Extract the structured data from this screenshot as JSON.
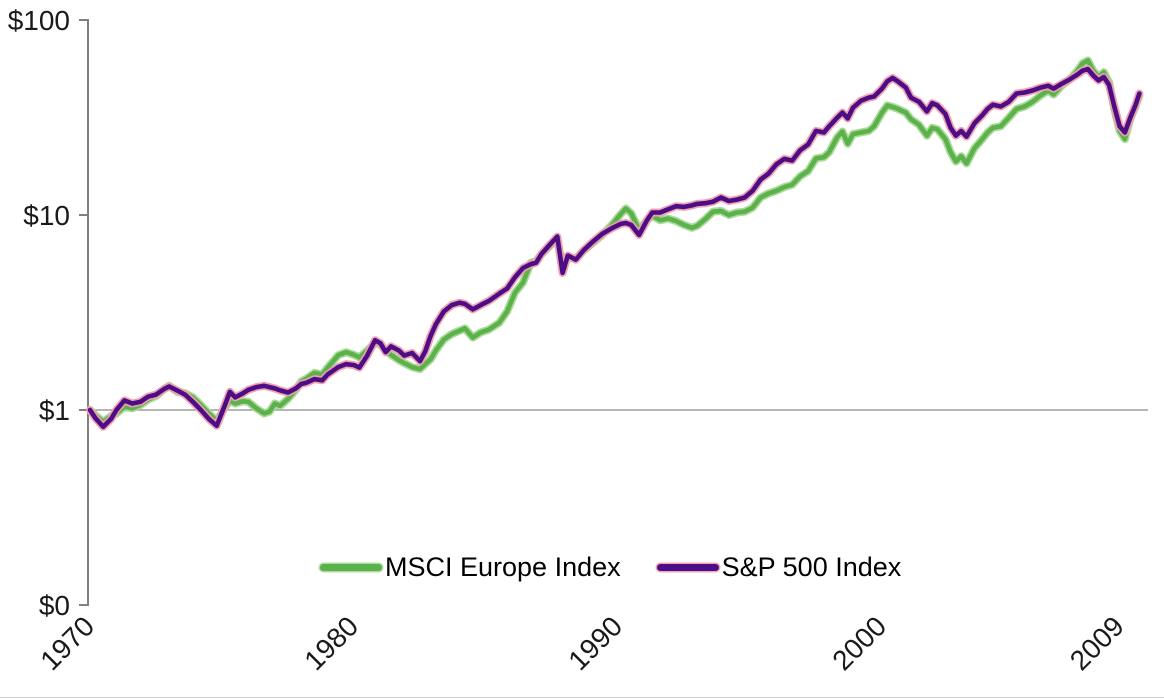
{
  "colors": {
    "msci_europe_line": "#5BB24B",
    "msci_europe_halo": "#A6D794",
    "sp500_line": "#4B0E86",
    "sp500_halo": "#F29DAD",
    "axis": "#808080",
    "gridline": "#9E9E9E",
    "bottom_border": "#C9C9C9",
    "text": "#1A1A1A"
  },
  "legend": {
    "items": [
      {
        "label": "MSCI Europe Index",
        "swatch": "green-line-swatch"
      },
      {
        "label": "S&P 500 Index",
        "swatch": "purple-line-swatch"
      }
    ]
  },
  "chart_data": {
    "type": "line",
    "title": "",
    "xlabel": "",
    "ylabel": "",
    "y_axis": {
      "scale": "log",
      "range": [
        0.1,
        100
      ],
      "ticks": [
        {
          "label": "$100",
          "v": 100
        },
        {
          "label": "$10",
          "v": 10
        },
        {
          "label": "$1",
          "v": 1
        },
        {
          "label": "$0",
          "v": 0.1
        }
      ],
      "reference_gridline_value": 1
    },
    "x_axis": {
      "range": [
        1970,
        2009.8
      ],
      "ticks": [
        {
          "label": "1970",
          "year": 1970
        },
        {
          "label": "1980",
          "year": 1980
        },
        {
          "label": "1990",
          "year": 1990
        },
        {
          "label": "2000",
          "year": 2000
        },
        {
          "label": "2009",
          "year": 2009
        }
      ]
    },
    "legend_position": "bottom-center",
    "grid": "off",
    "x": [
      1970.0,
      1970.2,
      1970.5,
      1970.8,
      1971.0,
      1971.3,
      1971.6,
      1971.9,
      1972.2,
      1972.5,
      1972.8,
      1973.0,
      1973.3,
      1973.6,
      1973.9,
      1974.2,
      1974.5,
      1974.8,
      1975.1,
      1975.3,
      1975.5,
      1975.8,
      1976.0,
      1976.3,
      1976.6,
      1976.8,
      1977.0,
      1977.2,
      1977.5,
      1977.8,
      1978.0,
      1978.2,
      1978.5,
      1978.8,
      1979.0,
      1979.4,
      1979.7,
      1980.0,
      1980.2,
      1980.5,
      1980.8,
      1981.0,
      1981.2,
      1981.4,
      1981.7,
      1981.9,
      1982.2,
      1982.5,
      1982.7,
      1982.9,
      1983.1,
      1983.4,
      1983.7,
      1984.0,
      1984.2,
      1984.5,
      1984.8,
      1985.1,
      1985.5,
      1985.8,
      1986.1,
      1986.4,
      1986.7,
      1986.9,
      1987.1,
      1987.4,
      1987.7,
      1987.9,
      1988.1,
      1988.4,
      1988.7,
      1989.0,
      1989.4,
      1989.8,
      1990.1,
      1990.3,
      1990.5,
      1990.8,
      1991.1,
      1991.3,
      1991.6,
      1991.9,
      1992.2,
      1992.5,
      1992.8,
      1993.0,
      1993.3,
      1993.6,
      1993.9,
      1994.2,
      1994.5,
      1994.8,
      1995.1,
      1995.4,
      1995.7,
      1996.0,
      1996.3,
      1996.6,
      1996.9,
      1997.2,
      1997.5,
      1997.8,
      1998.0,
      1998.3,
      1998.5,
      1998.7,
      1998.9,
      1999.2,
      1999.5,
      1999.7,
      2000.0,
      2000.2,
      2000.4,
      2000.6,
      2000.9,
      2001.1,
      2001.4,
      2001.7,
      2001.9,
      2002.1,
      2002.4,
      2002.6,
      2002.8,
      2003.0,
      2003.2,
      2003.5,
      2003.8,
      2004.0,
      2004.2,
      2004.5,
      2004.8,
      2005.1,
      2005.4,
      2005.7,
      2006.0,
      2006.3,
      2006.5,
      2006.8,
      2007.1,
      2007.4,
      2007.6,
      2007.8,
      2008.0,
      2008.2,
      2008.4,
      2008.6,
      2008.8,
      2009.0,
      2009.2,
      2009.4,
      2009.6,
      2009.75
    ],
    "series": [
      {
        "name": "MSCI Europe Index",
        "color": "#5BB24B",
        "halo": "#A6D794",
        "values": [
          1.0,
          0.94,
          0.87,
          0.93,
          0.96,
          1.04,
          1.02,
          1.06,
          1.13,
          1.18,
          1.28,
          1.33,
          1.24,
          1.22,
          1.16,
          1.06,
          0.96,
          0.88,
          1.02,
          1.12,
          1.08,
          1.11,
          1.1,
          1.02,
          0.96,
          0.98,
          1.08,
          1.05,
          1.14,
          1.27,
          1.4,
          1.45,
          1.55,
          1.52,
          1.65,
          1.91,
          1.98,
          1.92,
          1.86,
          2.02,
          2.2,
          2.18,
          2.02,
          1.92,
          1.8,
          1.74,
          1.66,
          1.62,
          1.72,
          1.82,
          2.02,
          2.3,
          2.45,
          2.55,
          2.62,
          2.35,
          2.5,
          2.58,
          2.8,
          3.2,
          4.0,
          4.5,
          5.7,
          5.8,
          6.3,
          6.9,
          7.6,
          5.3,
          6.1,
          5.95,
          6.6,
          7.1,
          7.9,
          9.0,
          10.1,
          10.8,
          10.2,
          8.4,
          9.4,
          9.9,
          9.4,
          9.6,
          9.3,
          8.9,
          8.6,
          8.8,
          9.5,
          10.4,
          10.5,
          10.0,
          10.3,
          10.4,
          10.9,
          12.3,
          12.9,
          13.3,
          13.9,
          14.3,
          15.8,
          16.8,
          19.5,
          19.8,
          21.0,
          25.0,
          26.8,
          23.2,
          26.0,
          26.5,
          27.0,
          28.5,
          33.5,
          36.5,
          35.8,
          35.0,
          33.5,
          31.0,
          29.0,
          25.5,
          28.0,
          27.5,
          24.5,
          21.0,
          18.8,
          20.0,
          18.4,
          22.0,
          24.5,
          26.5,
          28.0,
          28.5,
          31.5,
          35.0,
          36.0,
          38.0,
          41.0,
          43.5,
          41.5,
          46.0,
          49.5,
          55.0,
          60.0,
          62.0,
          55.0,
          51.0,
          54.0,
          48.0,
          35.0,
          27.0,
          24.5,
          31.0,
          36.0,
          41.0
        ]
      },
      {
        "name": "S&P 500 Index",
        "color": "#4B0E86",
        "halo": "#F29DAD",
        "values": [
          1.0,
          0.91,
          0.82,
          0.9,
          1.0,
          1.12,
          1.08,
          1.1,
          1.17,
          1.2,
          1.28,
          1.32,
          1.26,
          1.2,
          1.1,
          1.0,
          0.9,
          0.83,
          1.05,
          1.24,
          1.16,
          1.22,
          1.27,
          1.31,
          1.33,
          1.31,
          1.29,
          1.26,
          1.23,
          1.29,
          1.36,
          1.38,
          1.44,
          1.42,
          1.52,
          1.66,
          1.72,
          1.7,
          1.65,
          1.9,
          2.28,
          2.2,
          1.98,
          2.12,
          2.02,
          1.9,
          1.96,
          1.78,
          2.0,
          2.4,
          2.75,
          3.2,
          3.45,
          3.55,
          3.5,
          3.28,
          3.45,
          3.62,
          3.95,
          4.2,
          4.8,
          5.35,
          5.6,
          5.7,
          6.3,
          7.0,
          7.75,
          5.05,
          6.2,
          5.9,
          6.6,
          7.2,
          8.0,
          8.6,
          9.0,
          9.1,
          8.9,
          7.9,
          9.4,
          10.3,
          10.3,
          10.7,
          11.1,
          11.0,
          11.2,
          11.4,
          11.5,
          11.7,
          12.3,
          11.8,
          12.0,
          12.3,
          13.3,
          15.2,
          16.3,
          18.2,
          19.4,
          19.0,
          21.5,
          23.0,
          27.0,
          26.5,
          28.5,
          31.5,
          33.5,
          31.3,
          35.5,
          38.5,
          40.0,
          40.5,
          44.5,
          48.5,
          50.4,
          48.5,
          45.0,
          40.0,
          38.0,
          34.0,
          37.5,
          36.5,
          33.0,
          28.0,
          25.5,
          27.0,
          25.2,
          29.5,
          32.5,
          35.0,
          36.8,
          36.0,
          38.0,
          42.0,
          42.5,
          43.5,
          45.0,
          46.0,
          44.5,
          47.0,
          49.5,
          52.5,
          55.0,
          56.0,
          52.0,
          49.0,
          51.0,
          46.5,
          36.0,
          28.5,
          26.5,
          31.5,
          36.5,
          42.0
        ]
      }
    ]
  }
}
